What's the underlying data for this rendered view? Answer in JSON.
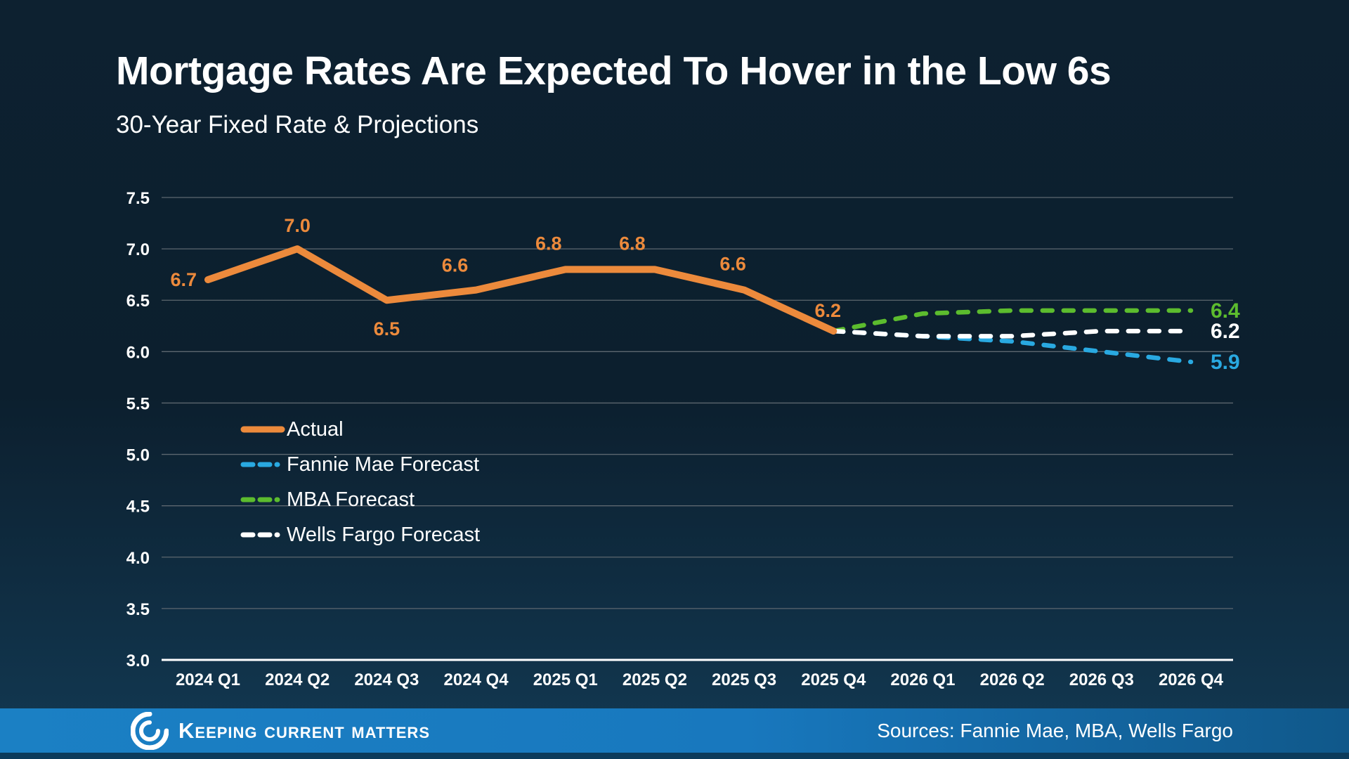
{
  "header": {
    "title": "Mortgage Rates Are Expected To Hover in the Low 6s",
    "subtitle": "30-Year Fixed Rate & Projections"
  },
  "chart_data": {
    "type": "line",
    "title": "Mortgage Rates Are Expected To Hover in the Low 6s",
    "subtitle": "30-Year Fixed Rate & Projections",
    "categories": [
      "2024 Q1",
      "2024 Q2",
      "2024 Q3",
      "2024 Q4",
      "2025 Q1",
      "2025 Q2",
      "2025 Q3",
      "2025 Q4",
      "2026 Q1",
      "2026 Q2",
      "2026 Q3",
      "2026 Q4"
    ],
    "ylim": [
      3.0,
      7.5
    ],
    "yticks": [
      7.5,
      7.0,
      6.5,
      6.0,
      5.5,
      5.0,
      4.5,
      4.0,
      3.5,
      3.0
    ],
    "ytick_labels": [
      "7.5",
      "7.0",
      "6.5",
      "6.0",
      "5.5",
      "5.0",
      "4.5",
      "4.0",
      "3.5",
      "3.0"
    ],
    "grid": "horizontal gridlines on, baseline at 3.0 highlighted",
    "legend_position": "inside plot, center-left",
    "series": [
      {
        "name": "Actual",
        "color": "#EC8A3C",
        "style": "solid",
        "values": [
          6.7,
          7.0,
          6.5,
          6.6,
          6.8,
          6.8,
          6.6,
          6.2,
          null,
          null,
          null,
          null
        ],
        "point_labels": [
          "6.7",
          "7.0",
          "6.5",
          "6.6",
          "6.8",
          "6.8",
          "6.6",
          "6.2"
        ]
      },
      {
        "name": "Fannie Mae Forecast",
        "color": "#29A9E1",
        "style": "dashed",
        "values": [
          null,
          null,
          null,
          null,
          null,
          null,
          null,
          6.2,
          6.15,
          6.1,
          6.0,
          5.9
        ],
        "end_label": "5.9"
      },
      {
        "name": "MBA Forecast",
        "color": "#5CBC2E",
        "style": "dashed",
        "values": [
          null,
          null,
          null,
          null,
          null,
          null,
          null,
          6.2,
          6.37,
          6.4,
          6.4,
          6.4
        ],
        "end_label": "6.4"
      },
      {
        "name": "Wells Fargo Forecast",
        "color": "#FFFFFF",
        "style": "dashed",
        "values": [
          null,
          null,
          null,
          null,
          null,
          null,
          null,
          6.2,
          6.15,
          6.15,
          6.2,
          6.2
        ],
        "end_label": "6.2"
      }
    ]
  },
  "footer": {
    "brand": "Keeping Current Matters",
    "sources": "Sources: Fannie Mae, MBA, Wells Fargo",
    "bar_color": "#1878BE"
  }
}
